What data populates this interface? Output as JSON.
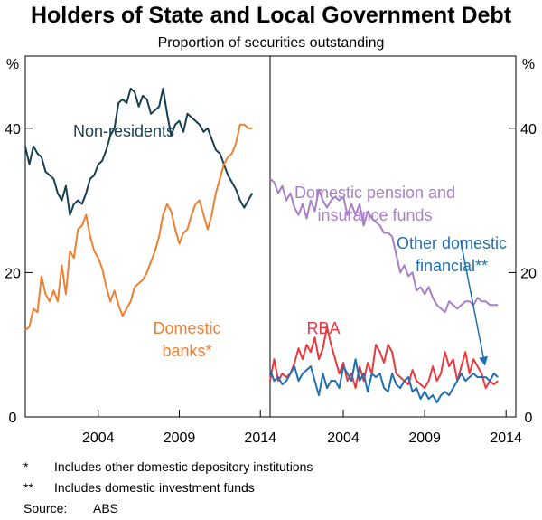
{
  "chart_data": {
    "type": "line",
    "title": "Holders of State and Local Government Debt",
    "subtitle": "Proportion of securities outstanding",
    "unit_label": "%",
    "ylim": [
      0,
      50
    ],
    "y_ticks": [
      0,
      20,
      40
    ],
    "x_ticks": [
      "2004",
      "2009",
      "2014"
    ],
    "panels": [
      {
        "name": "left",
        "xlim": [
          1999.5,
          2014.6
        ],
        "series": [
          {
            "name": "Non-residents",
            "label_lines": [
              "Non-residents"
            ],
            "color": "#163f52",
            "x": [
              1999.5,
              1999.75,
              2000.0,
              2000.25,
              2000.5,
              2000.75,
              2001.0,
              2001.25,
              2001.5,
              2001.75,
              2002.0,
              2002.25,
              2002.5,
              2002.75,
              2003.0,
              2003.25,
              2003.5,
              2003.75,
              2004.0,
              2004.25,
              2004.5,
              2004.75,
              2005.0,
              2005.25,
              2005.5,
              2005.75,
              2006.0,
              2006.25,
              2006.5,
              2006.75,
              2007.0,
              2007.25,
              2007.5,
              2007.75,
              2008.0,
              2008.25,
              2008.5,
              2008.75,
              2009.0,
              2009.25,
              2009.5,
              2009.75,
              2010.0,
              2010.25,
              2010.5,
              2010.75,
              2011.0,
              2011.25,
              2011.5,
              2011.75,
              2012.0,
              2012.25,
              2012.5,
              2012.75,
              2013.0,
              2013.25,
              2013.5
            ],
            "values": [
              37.5,
              35,
              37.5,
              36.5,
              36,
              34,
              33.5,
              33,
              31,
              30,
              32,
              28,
              29.5,
              30,
              29.5,
              31,
              33,
              33.5,
              35,
              35.5,
              37,
              39,
              40,
              43.5,
              44,
              43.5,
              45.5,
              45,
              43,
              44.5,
              44,
              42,
              42.5,
              43,
              45.5,
              42,
              39,
              40.5,
              41,
              39.5,
              42,
              41.5,
              41,
              40.5,
              39.5,
              40,
              38.5,
              37,
              36.5,
              35,
              33.5,
              32.5,
              31.5,
              30,
              29,
              30,
              31
            ]
          },
          {
            "name": "Domestic banks*",
            "label_lines": [
              "Domestic",
              "banks*"
            ],
            "color": "#f07f31",
            "x": [
              1999.5,
              1999.75,
              2000.0,
              2000.25,
              2000.5,
              2000.75,
              2001.0,
              2001.25,
              2001.5,
              2001.75,
              2002.0,
              2002.25,
              2002.5,
              2002.75,
              2003.0,
              2003.25,
              2003.5,
              2003.75,
              2004.0,
              2004.25,
              2004.5,
              2004.75,
              2005.0,
              2005.25,
              2005.5,
              2005.75,
              2006.0,
              2006.25,
              2006.5,
              2006.75,
              2007.0,
              2007.25,
              2007.5,
              2007.75,
              2008.0,
              2008.25,
              2008.5,
              2008.75,
              2009.0,
              2009.25,
              2009.5,
              2009.75,
              2010.0,
              2010.25,
              2010.5,
              2010.75,
              2011.0,
              2011.25,
              2011.5,
              2011.75,
              2012.0,
              2012.25,
              2012.5,
              2012.75,
              2013.0,
              2013.25,
              2013.5
            ],
            "values": [
              12,
              12.5,
              15,
              14.5,
              19.5,
              17,
              16,
              17.5,
              16,
              21,
              17,
              23,
              22,
              26,
              26.5,
              28,
              25,
              23,
              22,
              20.5,
              18,
              16,
              17.5,
              15.5,
              14,
              15,
              16,
              18,
              18.5,
              19,
              20,
              21.5,
              23,
              25,
              28,
              29.5,
              28.5,
              26,
              24,
              25.5,
              26,
              28,
              29.5,
              30,
              28,
              26,
              28,
              31,
              33,
              35,
              36,
              36.5,
              38,
              40.5,
              40.5,
              40,
              40
            ]
          }
        ]
      },
      {
        "name": "right",
        "xlim": [
          1999.5,
          2014.6
        ],
        "series": [
          {
            "name": "Domestic pension and insurance funds",
            "label_lines": [
              "Domestic pension and",
              "insurance funds"
            ],
            "color": "#a77fc4",
            "x": [
              1999.5,
              1999.75,
              2000.0,
              2000.25,
              2000.5,
              2000.75,
              2001.0,
              2001.25,
              2001.5,
              2001.75,
              2002.0,
              2002.25,
              2002.5,
              2002.75,
              2003.0,
              2003.25,
              2003.5,
              2003.75,
              2004.0,
              2004.25,
              2004.5,
              2004.75,
              2005.0,
              2005.25,
              2005.5,
              2005.75,
              2006.0,
              2006.25,
              2006.5,
              2006.75,
              2007.0,
              2007.25,
              2007.5,
              2007.75,
              2008.0,
              2008.25,
              2008.5,
              2008.75,
              2009.0,
              2009.25,
              2009.5,
              2009.75,
              2010.0,
              2010.25,
              2010.5,
              2010.75,
              2011.0,
              2011.25,
              2011.5,
              2011.75,
              2012.0,
              2012.25,
              2012.5,
              2012.75,
              2013.0,
              2013.25,
              2013.5
            ],
            "values": [
              33,
              32.5,
              31,
              32,
              30,
              31,
              29,
              28,
              29.5,
              27.5,
              30,
              28.5,
              31.5,
              30,
              29,
              30,
              30.5,
              30,
              30.5,
              28,
              29.5,
              28,
              29.5,
              26.5,
              28.5,
              27.5,
              27,
              26.5,
              25.5,
              25.5,
              25,
              22.5,
              20,
              21,
              19.5,
              20,
              17.5,
              18,
              17,
              18,
              16.5,
              15.5,
              15,
              14.5,
              16,
              15.5,
              15,
              15.5,
              16,
              16,
              15.5,
              16.5,
              16,
              16,
              15.5,
              15.5,
              15.5
            ]
          },
          {
            "name": "RBA",
            "label_lines": [
              "RBA"
            ],
            "color": "#e8393f",
            "x": [
              1999.5,
              1999.75,
              2000.0,
              2000.25,
              2000.5,
              2000.75,
              2001.0,
              2001.25,
              2001.5,
              2001.75,
              2002.0,
              2002.25,
              2002.5,
              2002.75,
              2003.0,
              2003.25,
              2003.5,
              2003.75,
              2004.0,
              2004.25,
              2004.5,
              2004.75,
              2005.0,
              2005.25,
              2005.5,
              2005.75,
              2006.0,
              2006.25,
              2006.5,
              2006.75,
              2007.0,
              2007.25,
              2007.5,
              2007.75,
              2008.0,
              2008.25,
              2008.5,
              2008.75,
              2009.0,
              2009.25,
              2009.5,
              2009.75,
              2010.0,
              2010.25,
              2010.5,
              2010.75,
              2011.0,
              2011.25,
              2011.5,
              2011.75,
              2012.0,
              2012.25,
              2012.5,
              2012.75,
              2013.0,
              2013.25,
              2013.5
            ],
            "values": [
              5,
              8,
              5,
              6,
              5.5,
              6,
              7.5,
              9.5,
              8,
              10,
              9,
              11,
              8,
              9.5,
              12.5,
              10,
              8,
              6,
              7.5,
              5,
              6,
              4,
              7,
              5,
              7.5,
              6,
              10,
              9,
              7.5,
              10,
              9,
              6,
              5.5,
              5,
              4.5,
              6.5,
              5,
              4.5,
              4,
              5,
              7,
              5,
              6,
              9,
              7,
              8,
              5,
              7,
              9,
              6,
              8,
              7,
              6,
              4,
              5,
              4.5,
              5
            ]
          },
          {
            "name": "Other domestic financial**",
            "label_lines": [
              "Other domestic",
              "financial**"
            ],
            "color": "#1f6fb2",
            "x": [
              1999.5,
              1999.75,
              2000.0,
              2000.25,
              2000.5,
              2000.75,
              2001.0,
              2001.25,
              2001.5,
              2001.75,
              2002.0,
              2002.25,
              2002.5,
              2002.75,
              2003.0,
              2003.25,
              2003.5,
              2003.75,
              2004.0,
              2004.25,
              2004.5,
              2004.75,
              2005.0,
              2005.25,
              2005.5,
              2005.75,
              2006.0,
              2006.25,
              2006.5,
              2006.75,
              2007.0,
              2007.25,
              2007.5,
              2007.75,
              2008.0,
              2008.25,
              2008.5,
              2008.75,
              2009.0,
              2009.25,
              2009.5,
              2009.75,
              2010.0,
              2010.25,
              2010.5,
              2010.75,
              2011.0,
              2011.25,
              2011.5,
              2011.75,
              2012.0,
              2012.25,
              2012.5,
              2012.75,
              2013.0,
              2013.25,
              2013.5
            ],
            "values": [
              6.5,
              5,
              5.5,
              4.5,
              5,
              6,
              7,
              5,
              6,
              6.5,
              7,
              5,
              3,
              6,
              4,
              5,
              5,
              4,
              7,
              6,
              5,
              8,
              5,
              6,
              3.5,
              6,
              5.5,
              6,
              4,
              3.5,
              6,
              4.5,
              4,
              5,
              5.5,
              3.5,
              4,
              2.5,
              3.5,
              2.5,
              3,
              2,
              3,
              3.5,
              3,
              4,
              5,
              6,
              5,
              5.5,
              6,
              5.5,
              5.5,
              5.5,
              5,
              6,
              5.5
            ]
          }
        ]
      }
    ],
    "annotation_arrow": {
      "from_series": "Other domestic financial**",
      "from_x": 2011.2,
      "from_y": 24.5,
      "to_x": 2012.7,
      "to_y": 7.2
    },
    "footnotes": [
      {
        "symbol": "*",
        "text": "Includes other domestic depository institutions"
      },
      {
        "symbol": "**",
        "text": "Includes domestic investment funds"
      }
    ],
    "source": {
      "label": "Source:",
      "text": "ABS"
    }
  }
}
